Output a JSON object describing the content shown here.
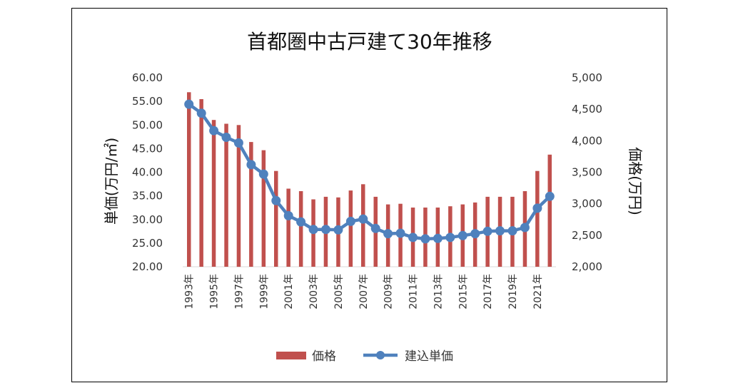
{
  "chart_data": {
    "type": "bar+line",
    "title": "首都圏中古戸建て30年推移",
    "y_left_label": "単価(万円/㎡)",
    "y_right_label": "価格(万円)",
    "y_left_ticks": [
      "60.00",
      "55.00",
      "50.00",
      "45.00",
      "40.00",
      "35.00",
      "30.00",
      "25.00",
      "20.00"
    ],
    "y_right_ticks": [
      "5,000",
      "4,500",
      "4,000",
      "3,500",
      "3,000",
      "2,500",
      "2,000"
    ],
    "y_left_range": [
      20,
      60
    ],
    "y_right_range": [
      2000,
      5000
    ],
    "x_tick_labels": [
      "1993年",
      "1995年",
      "1997年",
      "1999年",
      "2001年",
      "2003年",
      "2005年",
      "2007年",
      "2009年",
      "2011年",
      "2013年",
      "2015年",
      "2017年",
      "2019年",
      "2021年"
    ],
    "years": [
      1993,
      1994,
      1995,
      1996,
      1997,
      1998,
      1999,
      2000,
      2001,
      2002,
      2003,
      2004,
      2005,
      2006,
      2007,
      2008,
      2009,
      2010,
      2011,
      2012,
      2013,
      2014,
      2015,
      2016,
      2017,
      2018,
      2019,
      2020,
      2021,
      2022
    ],
    "series": [
      {
        "name": "価格",
        "type": "bar",
        "axis": "right",
        "color": "#c0504d",
        "values": [
          4770,
          4660,
          4330,
          4270,
          4250,
          3980,
          3850,
          3520,
          3240,
          3200,
          3070,
          3110,
          3100,
          3210,
          3310,
          3110,
          2990,
          3000,
          2940,
          2940,
          2940,
          2960,
          2990,
          3020,
          3110,
          3110,
          3110,
          3200,
          3520,
          3780
        ]
      },
      {
        "name": "建込単価",
        "type": "line",
        "axis": "left",
        "color": "#4f81bd",
        "values": [
          54.4,
          52.5,
          48.8,
          47.4,
          46.2,
          41.6,
          39.6,
          34.0,
          30.8,
          29.5,
          27.9,
          27.9,
          27.8,
          29.6,
          30.1,
          28.1,
          27.0,
          27.1,
          26.2,
          25.9,
          26.0,
          26.2,
          26.6,
          27.0,
          27.5,
          27.6,
          27.6,
          28.3,
          32.4,
          34.9
        ]
      }
    ]
  }
}
